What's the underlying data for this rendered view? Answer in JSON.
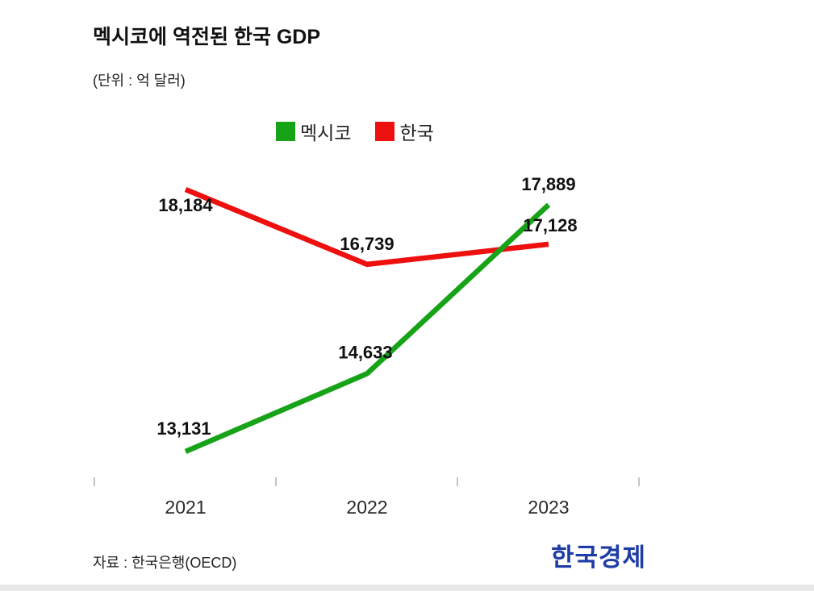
{
  "header": {
    "title": "멕시코에 역전된 한국 GDP",
    "subtitle": "(단위 : 억 달러)"
  },
  "legend": {
    "items": [
      {
        "label": "멕시코",
        "color": "#17a317"
      },
      {
        "label": "한국",
        "color": "#ee0f0f"
      }
    ]
  },
  "footer": {
    "source": "자료 : 한국은행(OECD)",
    "logo": "한국경제",
    "logo_color": "#1d3ca6"
  },
  "chart_data": {
    "type": "line",
    "title": "멕시코에 역전된 한국 GDP",
    "unit": "억 달러",
    "categories": [
      "2021",
      "2022",
      "2023"
    ],
    "series": [
      {
        "name": "멕시코",
        "color": "#17a317",
        "values": [
          13131,
          14633,
          17889
        ],
        "labels": [
          "13,131",
          "14,633",
          "17,889"
        ]
      },
      {
        "name": "한국",
        "color": "#ee0f0f",
        "values": [
          18184,
          16739,
          17128
        ],
        "labels": [
          "18,184",
          "16,739",
          "17,128"
        ]
      }
    ],
    "ylim": [
      12500,
      18800
    ],
    "grid": false,
    "legend_position": "top",
    "axis_tick_color": "#c4c4c4",
    "data_label_color": "#111111"
  }
}
